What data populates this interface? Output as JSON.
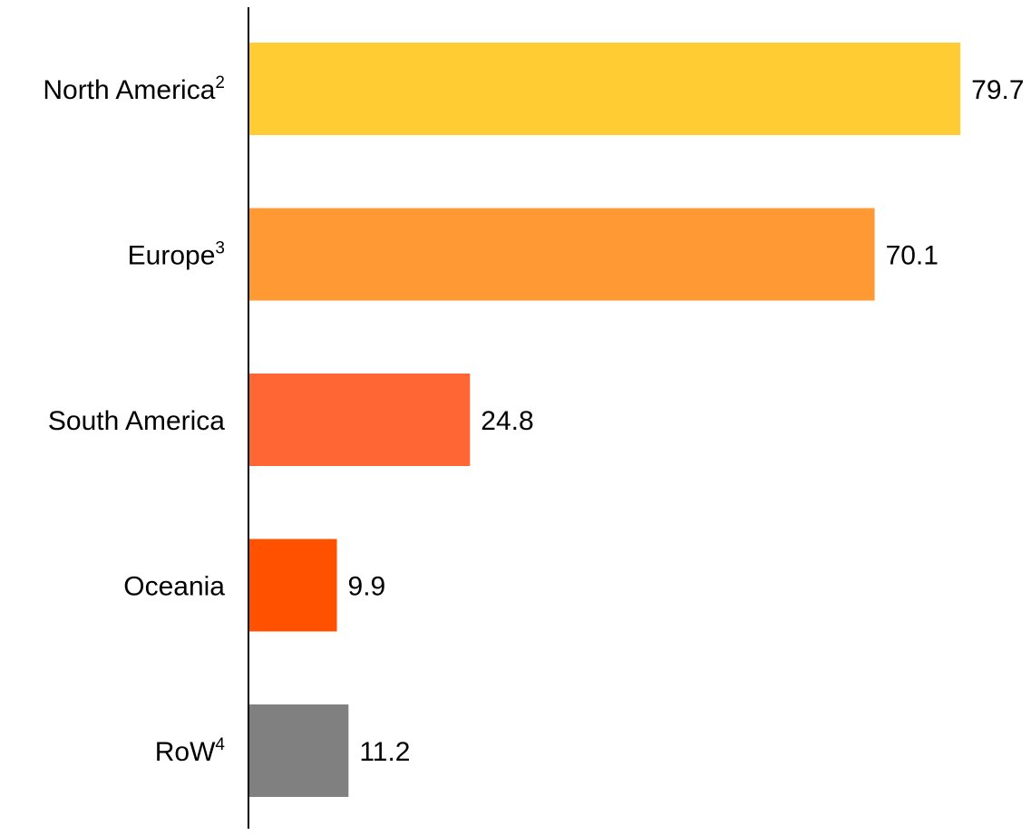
{
  "chart_data": {
    "type": "bar",
    "orientation": "horizontal",
    "categories": [
      {
        "name": "North America",
        "superscript": "2"
      },
      {
        "name": "Europe",
        "superscript": "3"
      },
      {
        "name": "South America",
        "superscript": ""
      },
      {
        "name": "Oceania",
        "superscript": ""
      },
      {
        "name": "RoW",
        "superscript": "4"
      }
    ],
    "values": [
      79.7,
      70.1,
      24.8,
      9.9,
      11.2
    ],
    "value_labels": [
      "79.7",
      "70.1",
      "24.8",
      "9.9",
      "11.2"
    ],
    "colors": [
      "#FFCC33",
      "#FF9933",
      "#FF6633",
      "#FF5100",
      "#808080"
    ],
    "xlim": [
      0,
      80.7
    ],
    "grid": false,
    "legend": "none"
  }
}
